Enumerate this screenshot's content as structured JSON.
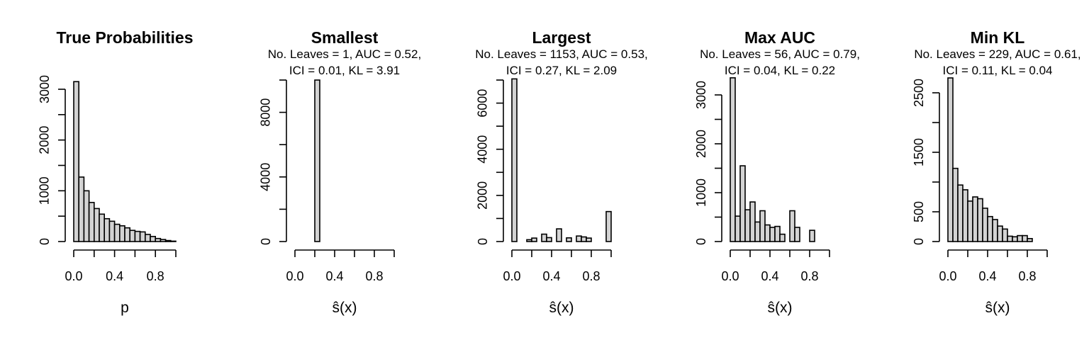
{
  "chart_data": [
    {
      "type": "bar",
      "title": "True Probabilities",
      "subtitle": [],
      "xlabel": "p",
      "ylabel": "",
      "bin_width": 0.05,
      "x_ticks": [
        0.0,
        0.4,
        0.8
      ],
      "x_tick_labels": [
        "0.0",
        "0.4",
        "0.8"
      ],
      "xlim": [
        0,
        1
      ],
      "y_ticks": [
        0,
        500,
        1000,
        1500,
        2000,
        2500,
        3000
      ],
      "y_tick_labels": [
        "0",
        "",
        "1000",
        "",
        "2000",
        "",
        "3000"
      ],
      "ylim": [
        0,
        3200
      ],
      "categories": [
        "0.00-0.05",
        "0.05-0.10",
        "0.10-0.15",
        "0.15-0.20",
        "0.20-0.25",
        "0.25-0.30",
        "0.30-0.35",
        "0.35-0.40",
        "0.40-0.45",
        "0.45-0.50",
        "0.50-0.55",
        "0.55-0.60",
        "0.60-0.65",
        "0.65-0.70",
        "0.70-0.75",
        "0.75-0.80",
        "0.80-0.85",
        "0.85-0.90",
        "0.90-0.95",
        "0.95-1.00"
      ],
      "values": [
        3150,
        1270,
        1000,
        770,
        650,
        540,
        450,
        400,
        340,
        310,
        270,
        220,
        200,
        190,
        140,
        100,
        60,
        40,
        20,
        8
      ]
    },
    {
      "type": "bar",
      "title": "Smallest",
      "subtitle": [
        "No. Leaves = 1, AUC = 0.52,",
        "ICI = 0.01, KL = 3.91"
      ],
      "xlabel": "ŝ(x)",
      "ylabel": "",
      "bin_width": 0.05,
      "x_ticks": [
        0.0,
        0.4,
        0.8
      ],
      "x_tick_labels": [
        "0.0",
        "0.4",
        "0.8"
      ],
      "xlim": [
        0,
        1
      ],
      "y_ticks": [
        0,
        2000,
        4000,
        6000,
        8000,
        10000
      ],
      "y_tick_labels": [
        "0",
        "",
        "4000",
        "",
        "8000",
        ""
      ],
      "ylim": [
        0,
        10000
      ],
      "categories": [
        "0.00-0.05",
        "0.05-0.10",
        "0.10-0.15",
        "0.15-0.20",
        "0.20-0.25",
        "0.25-0.30",
        "0.30-0.35",
        "0.35-0.40",
        "0.40-0.45",
        "0.45-0.50",
        "0.50-0.55",
        "0.55-0.60",
        "0.60-0.65",
        "0.65-0.70",
        "0.70-0.75",
        "0.75-0.80",
        "0.80-0.85",
        "0.85-0.90",
        "0.90-0.95",
        "0.95-1.00"
      ],
      "values": [
        0,
        0,
        0,
        0,
        10000,
        0,
        0,
        0,
        0,
        0,
        0,
        0,
        0,
        0,
        0,
        0,
        0,
        0,
        0,
        0
      ]
    },
    {
      "type": "bar",
      "title": "Largest",
      "subtitle": [
        "No. Leaves = 1153, AUC = 0.53,",
        "ICI = 0.27, KL = 2.09"
      ],
      "xlabel": "ŝ(x)",
      "ylabel": "",
      "bin_width": 0.05,
      "x_ticks": [
        0.0,
        0.4,
        0.8
      ],
      "x_tick_labels": [
        "0.0",
        "0.4",
        "0.8"
      ],
      "xlim": [
        0,
        1
      ],
      "y_ticks": [
        0,
        1000,
        2000,
        3000,
        4000,
        5000,
        6000,
        7000
      ],
      "y_tick_labels": [
        "0",
        "",
        "2000",
        "",
        "4000",
        "",
        "6000",
        ""
      ],
      "ylim": [
        0,
        7000
      ],
      "categories": [
        "0.00-0.05",
        "0.05-0.10",
        "0.10-0.15",
        "0.15-0.20",
        "0.20-0.25",
        "0.25-0.30",
        "0.30-0.35",
        "0.35-0.40",
        "0.40-0.45",
        "0.45-0.50",
        "0.50-0.55",
        "0.55-0.60",
        "0.60-0.65",
        "0.65-0.70",
        "0.70-0.75",
        "0.75-0.80",
        "0.80-0.85",
        "0.85-0.90",
        "0.90-0.95",
        "0.95-1.00"
      ],
      "values": [
        7050,
        0,
        0,
        80,
        150,
        0,
        320,
        170,
        0,
        550,
        0,
        160,
        0,
        240,
        200,
        150,
        0,
        0,
        0,
        1300
      ]
    },
    {
      "type": "bar",
      "title": "Max AUC",
      "subtitle": [
        "No. Leaves = 56, AUC = 0.79,",
        "ICI = 0.04, KL = 0.22"
      ],
      "xlabel": "ŝ(x)",
      "ylabel": "",
      "bin_width": 0.05,
      "x_ticks": [
        0.0,
        0.4,
        0.8
      ],
      "x_tick_labels": [
        "0.0",
        "0.4",
        "0.8"
      ],
      "xlim": [
        0,
        1
      ],
      "y_ticks": [
        0,
        500,
        1000,
        1500,
        2000,
        2500,
        3000
      ],
      "y_tick_labels": [
        "0",
        "",
        "1000",
        "",
        "2000",
        "",
        "3000"
      ],
      "ylim": [
        0,
        3350
      ],
      "categories": [
        "0.00-0.05",
        "0.05-0.10",
        "0.10-0.15",
        "0.15-0.20",
        "0.20-0.25",
        "0.25-0.30",
        "0.30-0.35",
        "0.35-0.40",
        "0.40-0.45",
        "0.45-0.50",
        "0.50-0.55",
        "0.55-0.60",
        "0.60-0.65",
        "0.65-0.70",
        "0.70-0.75",
        "0.75-0.80",
        "0.80-0.85",
        "0.85-0.90",
        "0.90-0.95",
        "0.95-1.00"
      ],
      "values": [
        3350,
        520,
        1550,
        650,
        810,
        400,
        630,
        340,
        290,
        310,
        150,
        0,
        630,
        290,
        0,
        0,
        230,
        0,
        0,
        0
      ]
    },
    {
      "type": "bar",
      "title": "Min KL",
      "subtitle": [
        "No. Leaves = 229, AUC = 0.61,",
        "ICI = 0.11, KL = 0.04"
      ],
      "xlabel": "ŝ(x)",
      "ylabel": "",
      "bin_width": 0.05,
      "x_ticks": [
        0.0,
        0.4,
        0.8
      ],
      "x_tick_labels": [
        "0.0",
        "0.4",
        "0.8"
      ],
      "xlim": [
        0,
        1
      ],
      "y_ticks": [
        0,
        500,
        1000,
        1500,
        2000,
        2500
      ],
      "y_tick_labels": [
        "0",
        "500",
        "",
        "1500",
        "",
        "2500"
      ],
      "ylim": [
        0,
        2750
      ],
      "categories": [
        "0.00-0.05",
        "0.05-0.10",
        "0.10-0.15",
        "0.15-0.20",
        "0.20-0.25",
        "0.25-0.30",
        "0.30-0.35",
        "0.35-0.40",
        "0.40-0.45",
        "0.45-0.50",
        "0.50-0.55",
        "0.55-0.60",
        "0.60-0.65",
        "0.65-0.70",
        "0.70-0.75",
        "0.75-0.80",
        "0.80-0.85",
        "0.85-0.90",
        "0.90-0.95",
        "0.95-1.00"
      ],
      "values": [
        2750,
        1230,
        950,
        870,
        680,
        750,
        720,
        560,
        420,
        370,
        260,
        210,
        90,
        80,
        100,
        100,
        50,
        0,
        0,
        0
      ]
    }
  ]
}
